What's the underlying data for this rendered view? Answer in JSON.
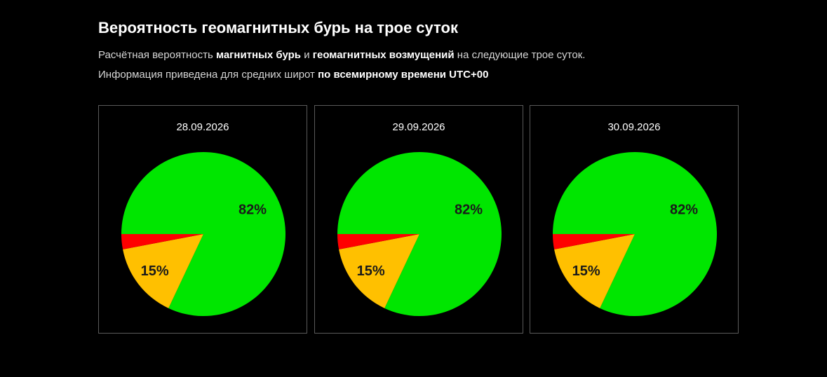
{
  "header": {
    "title": "Вероятность геомагнитных бурь на трое суток",
    "line1": {
      "p1": "Расчётная вероятность ",
      "b1": "магнитных бурь",
      "p2": " и ",
      "b2": "геомагнитных возмущений",
      "p3": " на следующие трое суток."
    },
    "line2": {
      "p1": "Информация приведена для средних широт ",
      "b1": "по всемирному времени UTC+00"
    }
  },
  "colors": {
    "background": "#000000",
    "green": "#00e600",
    "yellow": "#ffc000",
    "red": "#ff0000",
    "border": "#5a5a5a"
  },
  "chart_data": [
    {
      "type": "pie",
      "title": "28.09.2026",
      "slices": [
        {
          "value": 82,
          "color": "#00e600",
          "label": "82%"
        },
        {
          "value": 15,
          "color": "#ffc000",
          "label": "15%"
        },
        {
          "value": 3,
          "color": "#ff0000",
          "label": ""
        }
      ]
    },
    {
      "type": "pie",
      "title": "29.09.2026",
      "slices": [
        {
          "value": 82,
          "color": "#00e600",
          "label": "82%"
        },
        {
          "value": 15,
          "color": "#ffc000",
          "label": "15%"
        },
        {
          "value": 3,
          "color": "#ff0000",
          "label": ""
        }
      ]
    },
    {
      "type": "pie",
      "title": "30.09.2026",
      "slices": [
        {
          "value": 82,
          "color": "#00e600",
          "label": "82%"
        },
        {
          "value": 15,
          "color": "#ffc000",
          "label": "15%"
        },
        {
          "value": 3,
          "color": "#ff0000",
          "label": ""
        }
      ]
    }
  ]
}
